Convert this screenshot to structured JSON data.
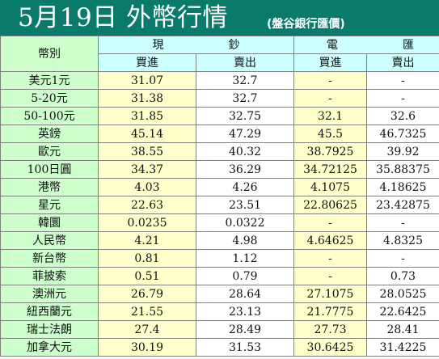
{
  "header": {
    "title": "5月19日 外幣行情",
    "source": "(盤谷銀行匯價)",
    "colors": {
      "header_bg": "#0a7a6a",
      "currency_bg": "#ccffcc",
      "subheader_bg": "#ccffff",
      "cash_bg": "#ffffcc"
    }
  },
  "table": {
    "currency_col_label": "幣別",
    "groups": [
      {
        "chars": [
          "現",
          "鈔"
        ]
      },
      {
        "chars": [
          "電",
          "匯"
        ]
      }
    ],
    "subheaders": [
      "買進",
      "賣出",
      "買進",
      "賣出"
    ],
    "rows": [
      {
        "currency": "美元1元",
        "cash_buy": "31.07",
        "cash_sell": "32.7",
        "tt_buy": "-",
        "tt_sell": "-"
      },
      {
        "currency": "5-20元",
        "cash_buy": "31.38",
        "cash_sell": "32.7",
        "tt_buy": "-",
        "tt_sell": "-"
      },
      {
        "currency": "50-100元",
        "cash_buy": "31.85",
        "cash_sell": "32.75",
        "tt_buy": "32.1",
        "tt_sell": "32.6"
      },
      {
        "currency": "英鎊",
        "cash_buy": "45.14",
        "cash_sell": "47.29",
        "tt_buy": "45.5",
        "tt_sell": "46.7325"
      },
      {
        "currency": "歐元",
        "cash_buy": "38.55",
        "cash_sell": "40.32",
        "tt_buy": "38.7925",
        "tt_sell": "39.92"
      },
      {
        "currency": "100日圓",
        "cash_buy": "34.37",
        "cash_sell": "36.29",
        "tt_buy": "34.72125",
        "tt_sell": "35.88375"
      },
      {
        "currency": "港幣",
        "cash_buy": "4.03",
        "cash_sell": "4.26",
        "tt_buy": "4.1075",
        "tt_sell": "4.18625"
      },
      {
        "currency": "星元",
        "cash_buy": "22.63",
        "cash_sell": "23.51",
        "tt_buy": "22.80625",
        "tt_sell": "23.42875"
      },
      {
        "currency": "韓圜",
        "cash_buy": "0.0235",
        "cash_sell": "0.0322",
        "tt_buy": "-",
        "tt_sell": "-"
      },
      {
        "currency": "人民幣",
        "cash_buy": "4.21",
        "cash_sell": "4.98",
        "tt_buy": "4.64625",
        "tt_sell": "4.8325"
      },
      {
        "currency": "新台幣",
        "cash_buy": "0.81",
        "cash_sell": "1.12",
        "tt_buy": "-",
        "tt_sell": "-"
      },
      {
        "currency": "菲披索",
        "cash_buy": "0.51",
        "cash_sell": "0.79",
        "tt_buy": "-",
        "tt_sell": "0.73"
      },
      {
        "currency": "澳洲元",
        "cash_buy": "26.79",
        "cash_sell": "28.64",
        "tt_buy": "27.1075",
        "tt_sell": "28.0525"
      },
      {
        "currency": "紐西蘭元",
        "cash_buy": "21.55",
        "cash_sell": "23.13",
        "tt_buy": "21.7775",
        "tt_sell": "22.6425"
      },
      {
        "currency": "瑞士法朗",
        "cash_buy": "27.4",
        "cash_sell": "28.49",
        "tt_buy": "27.73",
        "tt_sell": "28.41"
      },
      {
        "currency": "加拿大元",
        "cash_buy": "30.19",
        "cash_sell": "31.53",
        "tt_buy": "30.6425",
        "tt_sell": "31.4225"
      }
    ]
  }
}
